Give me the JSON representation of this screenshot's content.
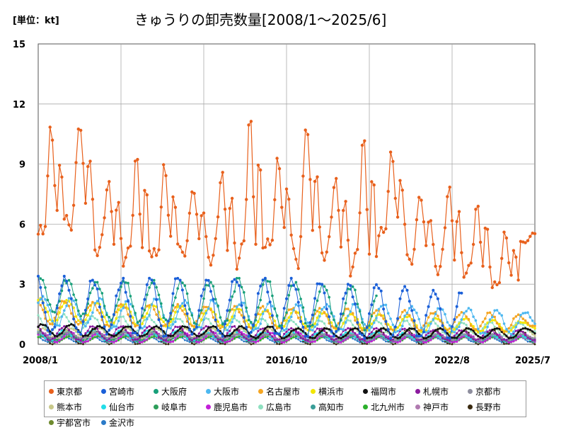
{
  "chart_data": {
    "type": "line",
    "title": "きゅうりの卸売数量[2008/1～2025/6]",
    "unit_label": "[単位：kt]",
    "xlabel": "",
    "ylabel": "",
    "x_start": "2008-01",
    "x_end": "2025-07",
    "x_ticks": [
      "2008/1",
      "2010/12",
      "2013/11",
      "2016/10",
      "2019/9",
      "2022/8",
      "2025/7"
    ],
    "y_ticks": [
      "0",
      "3",
      "6",
      "9",
      "12",
      "15"
    ],
    "ylim": [
      0,
      15
    ],
    "grid": true,
    "legend_position": "bottom",
    "series": [
      {
        "name": "東京都",
        "color": "#E8601C",
        "peaks": [
          10.9,
          11.4,
          8.2,
          9.3,
          9.0,
          8.0,
          8.7,
          11.2,
          9.3,
          11.5,
          8.4,
          10.2,
          9.6,
          7.7,
          8.0,
          6.9,
          5.6
        ],
        "troughs": [
          5.5,
          6.0,
          4.7,
          4.3,
          4.4,
          4.6,
          4.3,
          4.3,
          4.9,
          4.2,
          4.5,
          3.9,
          5.5,
          4.2,
          3.8,
          3.6,
          2.9,
          5.1
        ],
        "marker_size": 2.2,
        "width": 1.2
      },
      {
        "name": "宮崎市",
        "color": "#1A5FD8",
        "peaks": [
          3.4,
          3.3,
          3.1,
          3.3,
          3.5,
          3.2,
          3.3,
          3.3,
          3.3,
          3.2,
          3.0,
          3.0,
          3.0,
          2.7,
          2.7,
          2.8
        ],
        "troughs": [
          0.5,
          0.5,
          0.5,
          0.4,
          0.4,
          0.5,
          0.4,
          0.4,
          0.4,
          0.4,
          0.4,
          0.3,
          0.3,
          0.3,
          0.3,
          0.3,
          0.3,
          0.3
        ],
        "marker_size": 2,
        "width": 1,
        "end": 0.85
      },
      {
        "name": "大阪府",
        "color": "#18A07A",
        "peaks": [
          3.4,
          3.2,
          3.1,
          3.2,
          3.2,
          3.2,
          3.1,
          3.3,
          3.3,
          3.1,
          3.0,
          2.9,
          2.9,
          3.0
        ],
        "troughs": [
          1.6,
          1.4,
          1.2,
          1.1,
          1.1,
          1.0,
          1.0,
          0.9,
          0.9,
          0.8,
          0.8,
          0.7,
          0.7,
          0.7,
          0.7
        ],
        "marker_size": 1.8,
        "width": 1,
        "end": 0.68
      },
      {
        "name": "大阪市",
        "color": "#4DB8F0",
        "peaks": [
          2.4,
          2.3,
          2.3,
          2.2,
          2.3,
          2.2,
          2.2,
          2.1,
          2.1,
          2.0,
          2.0,
          2.0,
          2.0,
          1.9,
          1.8,
          1.8,
          1.7,
          1.6
        ],
        "troughs": [
          0.9,
          0.9,
          0.8,
          0.8,
          0.8,
          0.8,
          0.7,
          0.7,
          0.7,
          0.7,
          0.7,
          0.7,
          0.6,
          0.6,
          0.6,
          0.5,
          0.5,
          0.8
        ],
        "marker_size": 1.8,
        "width": 1
      },
      {
        "name": "名古屋市",
        "color": "#F5A623",
        "peaks": [
          2.2,
          2.1,
          2.0,
          2.0,
          2.0,
          1.9,
          1.9,
          1.9,
          1.8,
          1.8,
          1.8,
          1.7,
          1.7,
          1.6,
          1.6,
          1.6,
          1.5,
          1.4
        ],
        "troughs": [
          1.0,
          1.0,
          0.9,
          0.9,
          0.9,
          0.9,
          0.8,
          0.8,
          0.8,
          0.8,
          0.8,
          0.7,
          0.7,
          0.7,
          0.7,
          0.7,
          0.6,
          0.9
        ],
        "marker_size": 1.8,
        "width": 1
      },
      {
        "name": "横浜市",
        "color": "#F2E600",
        "peaks": [
          2.3,
          2.2,
          2.1,
          2.0,
          2.0,
          1.9,
          1.8,
          1.8,
          1.7,
          1.7,
          1.6,
          1.5,
          1.5,
          1.4,
          1.3,
          1.3,
          1.2,
          1.1
        ],
        "troughs": [
          1.1,
          1.0,
          0.9,
          0.9,
          0.9,
          0.8,
          0.8,
          0.8,
          0.8,
          0.7,
          0.7,
          0.7,
          0.7,
          0.6,
          0.6,
          0.6,
          0.6,
          0.8
        ],
        "marker_size": 1.8,
        "width": 1
      },
      {
        "name": "福岡市",
        "color": "#111111",
        "peaks": [
          1.0,
          1.0,
          0.9,
          0.9,
          0.9,
          0.9,
          0.9,
          0.9,
          0.9,
          0.8,
          0.8,
          0.8,
          0.8,
          0.8,
          0.8,
          0.8,
          0.8,
          0.8
        ],
        "troughs": [
          0.4,
          0.4,
          0.4,
          0.4,
          0.4,
          0.4,
          0.4,
          0.3,
          0.3,
          0.3,
          0.3,
          0.3,
          0.3,
          0.3,
          0.3,
          0.3,
          0.3,
          0.5
        ],
        "marker_size": 1.6,
        "width": 2
      },
      {
        "name": "札幌市",
        "color": "#8B1A9E",
        "peaks": [
          0.9,
          0.9,
          0.9,
          0.9,
          0.9,
          0.9,
          0.9,
          0.8,
          0.8,
          0.8,
          0.8,
          0.8,
          0.8,
          0.7,
          0.7,
          0.7,
          0.7,
          0.7
        ],
        "troughs": [
          0.2,
          0.2,
          0.2,
          0.2,
          0.2,
          0.2,
          0.2,
          0.2,
          0.2,
          0.2,
          0.2,
          0.2,
          0.2,
          0.2,
          0.2,
          0.2,
          0.2,
          0.2
        ],
        "marker_size": 1.6,
        "width": 1
      },
      {
        "name": "京都市",
        "color": "#8E8E9E",
        "peaks": [
          0.6,
          0.6,
          0.6,
          0.6,
          0.6,
          0.5,
          0.5,
          0.5,
          0.5,
          0.5,
          0.5,
          0.5,
          0.5,
          0.5,
          0.5,
          0.5,
          0.5,
          0.5
        ],
        "troughs": [
          0.3,
          0.3,
          0.3,
          0.3,
          0.3,
          0.3,
          0.3,
          0.3,
          0.2,
          0.2,
          0.2,
          0.2,
          0.2,
          0.2,
          0.2,
          0.2,
          0.2,
          0.3
        ],
        "marker_size": 1.6,
        "width": 1
      },
      {
        "name": "熊本市",
        "color": "#C8C88A",
        "peaks": [
          0.8,
          0.8,
          0.8,
          0.8,
          0.8,
          0.8,
          0.8,
          0.8,
          0.8,
          0.8,
          0.8,
          0.8,
          0.8,
          0.8,
          0.8,
          0.8,
          0.8,
          0.8
        ],
        "troughs": [
          0.3,
          0.3,
          0.3,
          0.3,
          0.3,
          0.3,
          0.3,
          0.3,
          0.3,
          0.3,
          0.3,
          0.3,
          0.3,
          0.3,
          0.3,
          0.3,
          0.3,
          0.3
        ],
        "marker_size": 1.6,
        "width": 1
      },
      {
        "name": "仙台市",
        "color": "#22DDE8",
        "peaks": [
          0.7,
          0.7,
          0.7,
          0.7,
          0.7,
          0.6,
          0.6,
          0.6,
          0.6,
          0.6,
          0.6,
          0.6,
          0.6,
          0.5,
          0.5,
          0.5,
          0.5,
          0.5
        ],
        "troughs": [
          0.2,
          0.2,
          0.2,
          0.2,
          0.2,
          0.2,
          0.2,
          0.2,
          0.2,
          0.2,
          0.2,
          0.2,
          0.2,
          0.2,
          0.2,
          0.2,
          0.2,
          0.2
        ],
        "marker_size": 1.6,
        "width": 1
      },
      {
        "name": "岐阜市",
        "color": "#2E9E5A",
        "peaks": [
          0.6,
          0.6,
          0.6,
          0.6,
          0.6,
          0.6,
          0.5,
          0.5,
          0.5,
          0.5,
          0.5,
          0.5,
          0.5,
          0.5,
          0.5,
          0.5,
          0.5,
          0.5
        ],
        "troughs": [
          0.2,
          0.2,
          0.2,
          0.2,
          0.2,
          0.2,
          0.2,
          0.2,
          0.2,
          0.2,
          0.2,
          0.2,
          0.2,
          0.2,
          0.2,
          0.2,
          0.2,
          0.2
        ],
        "marker_size": 1.6,
        "width": 1
      },
      {
        "name": "鹿児島市",
        "color": "#C21FD8",
        "peaks": [
          0.6,
          0.6,
          0.6,
          0.6,
          0.6,
          0.6,
          0.6,
          0.6,
          0.6,
          0.6,
          0.5,
          0.5,
          0.5,
          0.5,
          0.5,
          0.5,
          0.5,
          0.5
        ],
        "troughs": [
          0.1,
          0.1,
          0.1,
          0.1,
          0.1,
          0.1,
          0.1,
          0.1,
          0.1,
          0.1,
          0.1,
          0.1,
          0.1,
          0.1,
          0.1,
          0.1,
          0.1,
          0.1
        ],
        "marker_size": 1.6,
        "width": 1
      },
      {
        "name": "広島市",
        "color": "#8EE0C0",
        "peaks": [
          1.5,
          1.4,
          1.4,
          1.4,
          1.3,
          1.3,
          1.3,
          1.3,
          1.2,
          1.2,
          1.2,
          1.2,
          1.2,
          1.2,
          1.1,
          1.1,
          1.1,
          1.1
        ],
        "troughs": [
          0.6,
          0.6,
          0.6,
          0.6,
          0.6,
          0.6,
          0.5,
          0.5,
          0.5,
          0.5,
          0.5,
          0.5,
          0.5,
          0.5,
          0.5,
          0.5,
          0.4,
          0.6
        ],
        "marker_size": 1.6,
        "width": 1
      },
      {
        "name": "高知市",
        "color": "#3A9E98",
        "peaks": [
          0.5,
          0.5,
          0.5,
          0.5,
          0.5,
          0.5,
          0.5,
          0.5,
          0.5,
          0.5,
          0.4,
          0.4,
          0.4,
          0.4,
          0.4,
          0.4,
          0.4,
          0.4
        ],
        "troughs": [
          0.1,
          0.1,
          0.1,
          0.1,
          0.1,
          0.1,
          0.1,
          0.1,
          0.1,
          0.1,
          0.1,
          0.1,
          0.1,
          0.1,
          0.1,
          0.1,
          0.1,
          0.1
        ],
        "marker_size": 1.4,
        "width": 1
      },
      {
        "name": "北九州市",
        "color": "#2CB02C",
        "peaks": [
          0.4,
          0.4,
          0.4,
          0.4,
          0.4,
          0.4,
          0.4,
          0.4,
          0.4,
          0.4,
          0.4,
          0.4,
          0.4,
          0.4,
          0.4,
          0.4,
          0.4,
          0.4
        ],
        "troughs": [
          0.1,
          0.1,
          0.1,
          0.1,
          0.1,
          0.1,
          0.1,
          0.1,
          0.1,
          0.1,
          0.1,
          0.1,
          0.1,
          0.1,
          0.1,
          0.1,
          0.1,
          0.1
        ],
        "marker_size": 1.4,
        "width": 1
      },
      {
        "name": "神戸市",
        "color": "#B07AB0",
        "peaks": [
          0.5,
          0.5,
          0.5,
          0.5,
          0.5,
          0.5,
          0.5,
          0.5,
          0.5,
          0.5,
          0.5,
          0.5,
          0.4,
          0.4,
          0.4,
          0.4,
          0.4,
          0.4
        ],
        "troughs": [
          0.2,
          0.2,
          0.2,
          0.2,
          0.2,
          0.2,
          0.2,
          0.2,
          0.2,
          0.2,
          0.2,
          0.2,
          0.2,
          0.2,
          0.2,
          0.2,
          0.2,
          0.2
        ],
        "marker_size": 1.4,
        "width": 1
      },
      {
        "name": "長野市",
        "color": "#3A2A10",
        "peaks": [
          0.7,
          0.7,
          0.7,
          0.7,
          0.7,
          0.7,
          0.7,
          0.7,
          0.7,
          0.7,
          0.7,
          0.7,
          0.7,
          0.7,
          0.7,
          0.7,
          0.7,
          0.7
        ],
        "troughs": [
          0.0,
          0.0,
          0.0,
          0.0,
          0.0,
          0.0,
          0.0,
          0.0,
          0.0,
          0.0,
          0.0,
          0.0,
          0.0,
          0.0,
          0.0,
          0.0,
          0.0,
          0.0
        ],
        "marker_size": 1.4,
        "width": 1
      },
      {
        "name": "宇都宮市",
        "color": "#6E8A2E",
        "peaks": [
          0.4,
          0.4,
          0.4,
          0.4,
          0.4,
          0.4,
          0.4,
          0.4,
          0.4,
          0.4,
          0.4,
          0.4,
          0.4,
          0.4,
          0.4,
          0.4,
          0.4,
          0.4
        ],
        "troughs": [
          0.1,
          0.1,
          0.1,
          0.1,
          0.1,
          0.1,
          0.1,
          0.1,
          0.1,
          0.1,
          0.1,
          0.1,
          0.1,
          0.1,
          0.1,
          0.1,
          0.1,
          0.1
        ],
        "marker_size": 1.4,
        "width": 1
      },
      {
        "name": "金沢市",
        "color": "#2A7AC8",
        "peaks": [
          0.4,
          0.4,
          0.4,
          0.4,
          0.4,
          0.4,
          0.4,
          0.4,
          0.4,
          0.4,
          0.4,
          0.4,
          0.4,
          0.4,
          0.4,
          0.4,
          0.4,
          0.4
        ],
        "troughs": [
          0.1,
          0.1,
          0.1,
          0.1,
          0.1,
          0.1,
          0.1,
          0.1,
          0.1,
          0.1,
          0.1,
          0.1,
          0.1,
          0.1,
          0.1,
          0.1,
          0.1,
          0.1
        ],
        "marker_size": 1.4,
        "width": 1
      }
    ]
  }
}
